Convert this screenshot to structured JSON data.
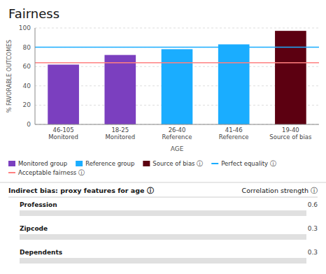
{
  "chart_data": [
    {
      "type": "bar",
      "title": "Fairness",
      "categories": [
        "46-105\nMonitored",
        "18-25\nMonitored",
        "26-40\nReference",
        "41-46\nReference",
        "19-40\nSource of bias"
      ],
      "series": [
        {
          "name": "Monitored group",
          "color": "#7B3FBF",
          "values": [
            62,
            72,
            null,
            null,
            null
          ]
        },
        {
          "name": "Reference group",
          "color": "#1AADFF",
          "values": [
            null,
            null,
            78,
            83,
            null
          ]
        },
        {
          "name": "Source of bias  ⓘ",
          "color": "#5C0011",
          "values": [
            null,
            null,
            null,
            null,
            97
          ]
        }
      ],
      "stacked": true,
      "reference_lines": [
        {
          "name": "Perfect equality  ⓘ",
          "value": 80,
          "color": "#1AADFF"
        },
        {
          "name": "Acceptable fairness  ⓘ",
          "value": 64,
          "color": "#FF8080"
        }
      ],
      "xlabel": "AGE",
      "ylabel": "% FAVORABLE OUTCOMES",
      "ylim": [
        0,
        100
      ],
      "yticks": [
        0,
        20,
        40,
        60,
        80,
        100
      ],
      "grid": true
    },
    {
      "type": "bar",
      "orientation": "horizontal",
      "title": "Indirect bias: proxy features for age  ⓘ",
      "xlabel": "Correlation strength  ⓘ",
      "categories": [
        "Profession",
        "Zipcode",
        "Dependents"
      ],
      "values": [
        0.6,
        0.3,
        0.3
      ],
      "color": "#1B3A5C",
      "xlim": [
        0,
        1
      ],
      "data_labels": true,
      "tick_labels": "y"
    }
  ]
}
